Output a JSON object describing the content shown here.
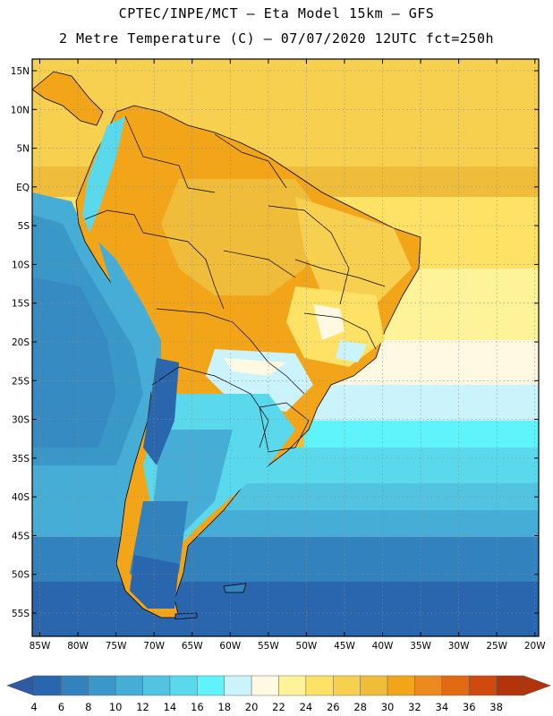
{
  "header": {
    "line1": "CPTEC/INPE/MCT –  Eta Model 15km – GFS",
    "line2": "2 Metre Temperature (C) – 07/07/2020 12UTC fct=250h"
  },
  "map": {
    "lat_labels": [
      "15N",
      "10N",
      "5N",
      "EQ",
      "5S",
      "10S",
      "15S",
      "20S",
      "25S",
      "30S",
      "35S",
      "40S",
      "45S",
      "50S",
      "55S"
    ],
    "lat_values": [
      15,
      10,
      5,
      0,
      -5,
      -10,
      -15,
      -20,
      -25,
      -30,
      -35,
      -40,
      -45,
      -50,
      -55
    ],
    "lon_labels": [
      "85W",
      "80W",
      "75W",
      "70W",
      "65W",
      "60W",
      "55W",
      "50W",
      "45W",
      "40W",
      "35W",
      "30W",
      "25W",
      "20W"
    ],
    "lon_values": [
      -85,
      -80,
      -75,
      -70,
      -65,
      -60,
      -55,
      -50,
      -45,
      -40,
      -35,
      -30,
      -25,
      -20
    ],
    "extent": {
      "lon_min": -86,
      "lon_max": -19.5,
      "lat_min": -58,
      "lat_max": 16.5
    }
  },
  "colorbar": {
    "labels": [
      "4",
      "6",
      "8",
      "10",
      "12",
      "14",
      "16",
      "18",
      "20",
      "22",
      "24",
      "26",
      "28",
      "30",
      "32",
      "34",
      "36",
      "38"
    ],
    "colors": [
      "#2a66ad",
      "#3282bd",
      "#3a98c8",
      "#46aed6",
      "#52c3e0",
      "#5ad9ec",
      "#5ff3fb",
      "#caf3fb",
      "#fff9e4",
      "#fff39a",
      "#fde265",
      "#f8d050",
      "#efbd3a",
      "#f3a51a",
      "#ec8a20",
      "#e16a12",
      "#cf4a0c",
      "#b3330b"
    ],
    "low_end_color": "#2d5aa3",
    "high_end_color": "#b3330b"
  }
}
